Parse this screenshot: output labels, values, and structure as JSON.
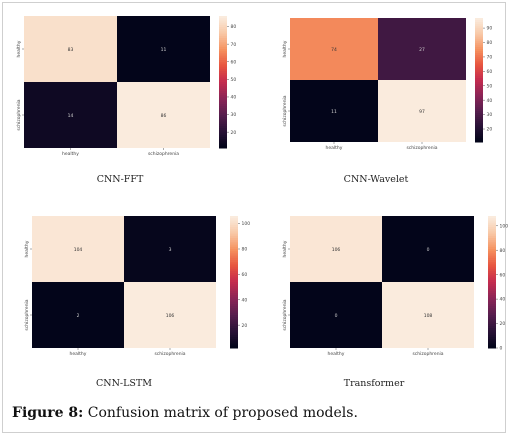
{
  "figure": {
    "caption_label": "Figure 8:",
    "caption_text": " Confusion matrix of proposed models."
  },
  "colors": {
    "colormap": "rocket",
    "stops": [
      "#03051a",
      "#2a1237",
      "#581e4e",
      "#8c2456",
      "#c42b4f",
      "#e7553f",
      "#f59260",
      "#f8c8a6",
      "#faebdd"
    ],
    "text_dark": "#333333",
    "text_light": "#d0d0d0"
  },
  "chart_data": [
    {
      "type": "heatmap",
      "title": "CNN-FFT",
      "xticklabels": [
        "healthy",
        "schizophrenia"
      ],
      "yticklabels": [
        "healthy",
        "schizophrenia"
      ],
      "values": [
        [
          83,
          11
        ],
        [
          14,
          86
        ]
      ],
      "cell_labels": [
        [
          "83",
          "11"
        ],
        [
          "14",
          "86"
        ]
      ],
      "colorbar": {
        "vmin": 11,
        "vmax": 86,
        "ticks": [
          20,
          30,
          40,
          50,
          60,
          70,
          80
        ]
      }
    },
    {
      "type": "heatmap",
      "title": "CNN-Wavelet",
      "xticklabels": [
        "healthy",
        "schizophrenia"
      ],
      "yticklabels": [
        "healthy",
        "schizophrenia"
      ],
      "values": [
        [
          74,
          27
        ],
        [
          11,
          97
        ]
      ],
      "cell_labels": [
        [
          "74",
          "27"
        ],
        [
          "11",
          "97"
        ]
      ],
      "colorbar": {
        "vmin": 11,
        "vmax": 97,
        "ticks": [
          20,
          30,
          40,
          50,
          60,
          70,
          80,
          90
        ]
      }
    },
    {
      "type": "heatmap",
      "title": "CNN-LSTM",
      "xticklabels": [
        "healthy",
        "schizophrenia"
      ],
      "yticklabels": [
        "healthy",
        "schizophrenia"
      ],
      "values": [
        [
          104,
          3
        ],
        [
          2,
          106
        ]
      ],
      "cell_labels": [
        [
          "104",
          "3"
        ],
        [
          "2",
          "106"
        ]
      ],
      "colorbar": {
        "vmin": 2,
        "vmax": 106,
        "ticks": [
          20,
          40,
          60,
          80,
          100
        ]
      }
    },
    {
      "type": "heatmap",
      "title": "Transformer",
      "xticklabels": [
        "healthy",
        "schizophrenia"
      ],
      "yticklabels": [
        "healthy",
        "schizophrenia"
      ],
      "values": [
        [
          106,
          0
        ],
        [
          0,
          108
        ]
      ],
      "cell_labels": [
        [
          "106",
          "0"
        ],
        [
          "0",
          "108"
        ]
      ],
      "colorbar": {
        "vmin": 0,
        "vmax": 108,
        "ticks": [
          0,
          20,
          40,
          60,
          80,
          100
        ]
      }
    }
  ]
}
